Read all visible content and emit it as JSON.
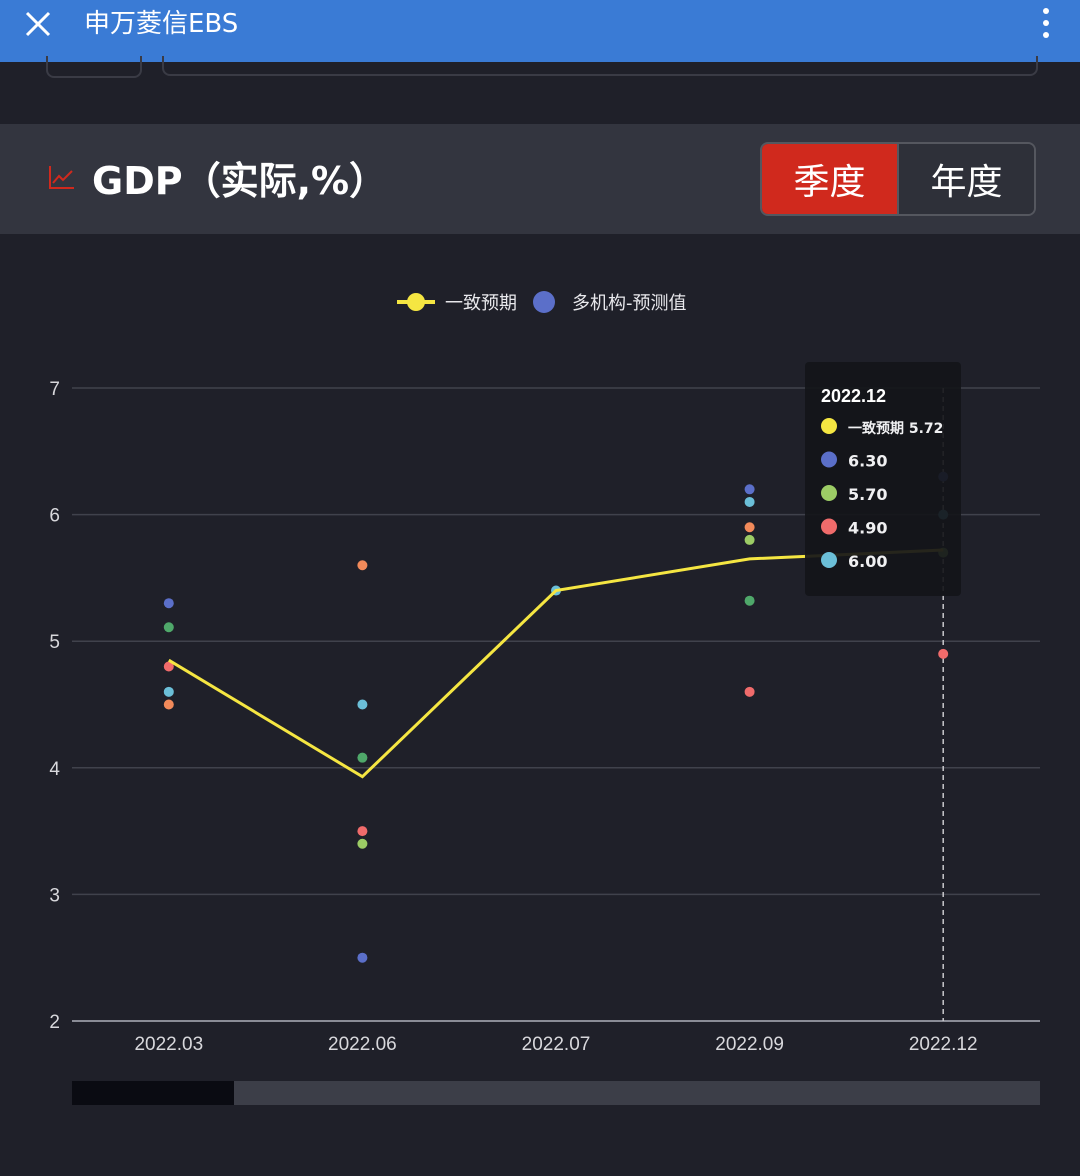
{
  "app": {
    "title": "申万菱信EBS",
    "icons": {
      "close": "close-icon",
      "more": "more-vertical-icon",
      "trend": "line-chart-icon"
    }
  },
  "header": {
    "title": "GDP（实际,%）",
    "tabs": [
      {
        "label": "季度",
        "active": true
      },
      {
        "label": "年度",
        "active": false
      }
    ]
  },
  "colors": {
    "topbar": "#3a7bd5",
    "active_tab": "#d0291d",
    "consensus_line": "#f5e642",
    "institution_1": "#5b6fc9",
    "institution_2": "#4fa86a",
    "institution_3": "#f06b6b",
    "institution_4": "#6bbfd8",
    "institution_5": "#f28a5a",
    "institution_6": "#9ccc65"
  },
  "chart_data": {
    "type": "line",
    "legend": [
      {
        "name": "一致预期",
        "color": "#f5e642",
        "kind": "line"
      },
      {
        "name": "多机构-预测值",
        "color": "#5b6fc9",
        "kind": "dot"
      }
    ],
    "legend_position": "top-center",
    "categories": [
      "2022.03",
      "2022.06",
      "2022.07",
      "2022.09",
      "2022.12"
    ],
    "ylim": [
      2,
      7
    ],
    "yticks": [
      "2",
      "3",
      "4",
      "5",
      "6",
      "7"
    ],
    "grid": true,
    "series": [
      {
        "name": "一致预期",
        "type": "line",
        "color": "#f5e642",
        "values": [
          4.85,
          3.93,
          5.4,
          5.65,
          5.72
        ]
      }
    ],
    "scatter": [
      {
        "x": "2022.03",
        "y": 5.3,
        "color": "#5b6fc9"
      },
      {
        "x": "2022.03",
        "y": 5.11,
        "color": "#4fa86a"
      },
      {
        "x": "2022.03",
        "y": 4.8,
        "color": "#f06b6b"
      },
      {
        "x": "2022.03",
        "y": 4.6,
        "color": "#6bbfd8"
      },
      {
        "x": "2022.03",
        "y": 4.5,
        "color": "#f28a5a"
      },
      {
        "x": "2022.06",
        "y": 5.6,
        "color": "#f28a5a"
      },
      {
        "x": "2022.06",
        "y": 4.5,
        "color": "#6bbfd8"
      },
      {
        "x": "2022.06",
        "y": 4.08,
        "color": "#4fa86a"
      },
      {
        "x": "2022.06",
        "y": 3.5,
        "color": "#f06b6b"
      },
      {
        "x": "2022.06",
        "y": 3.4,
        "color": "#9ccc65"
      },
      {
        "x": "2022.06",
        "y": 2.5,
        "color": "#5b6fc9"
      },
      {
        "x": "2022.07",
        "y": 5.4,
        "color": "#6bbfd8"
      },
      {
        "x": "2022.09",
        "y": 6.2,
        "color": "#5b6fc9"
      },
      {
        "x": "2022.09",
        "y": 6.1,
        "color": "#6bbfd8"
      },
      {
        "x": "2022.09",
        "y": 5.9,
        "color": "#f28a5a"
      },
      {
        "x": "2022.09",
        "y": 5.8,
        "color": "#9ccc65"
      },
      {
        "x": "2022.09",
        "y": 5.32,
        "color": "#4fa86a"
      },
      {
        "x": "2022.09",
        "y": 4.6,
        "color": "#f06b6b"
      },
      {
        "x": "2022.12",
        "y": 6.3,
        "color": "#5b6fc9"
      },
      {
        "x": "2022.12",
        "y": 6.0,
        "color": "#6bbfd8"
      },
      {
        "x": "2022.12",
        "y": 5.7,
        "color": "#9ccc65"
      },
      {
        "x": "2022.12",
        "y": 4.9,
        "color": "#f06b6b"
      }
    ],
    "tooltip": {
      "category": "2022.12",
      "title": "2022.12",
      "items": [
        {
          "label": "一致预期 5.72",
          "color": "#f5e642"
        },
        {
          "label": "6.30",
          "color": "#5b6fc9"
        },
        {
          "label": "5.70",
          "color": "#9ccc65"
        },
        {
          "label": "4.90",
          "color": "#f06b6b"
        },
        {
          "label": "6.00",
          "color": "#6bbfd8"
        }
      ]
    },
    "scrollbar_position": 0
  }
}
